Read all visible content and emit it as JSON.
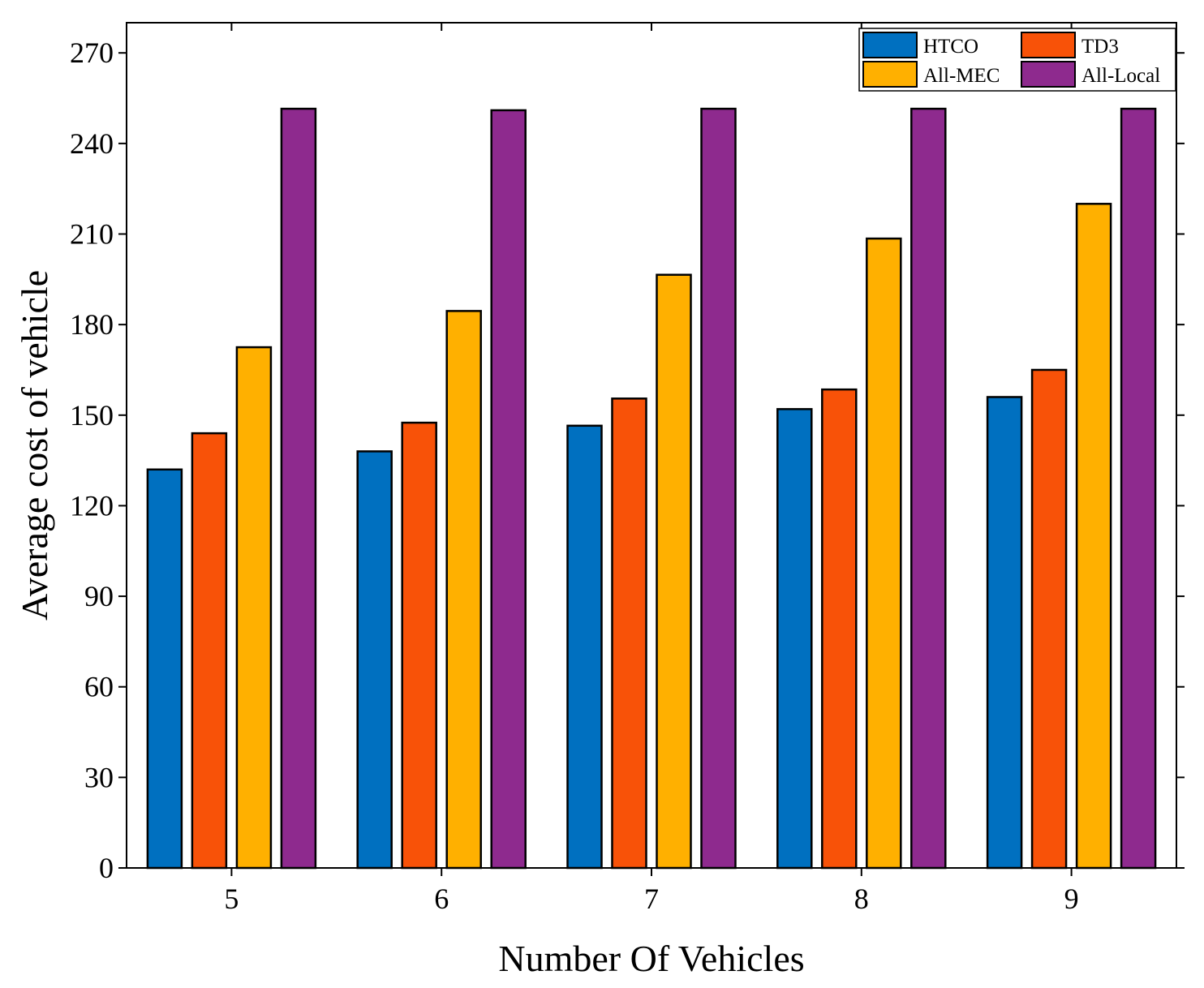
{
  "chart_data": {
    "type": "bar",
    "title": "",
    "xlabel": "Number Of Vehicles",
    "ylabel": "Average cost of vehicle",
    "categories": [
      "5",
      "6",
      "7",
      "8",
      "9"
    ],
    "ylim": [
      0,
      280
    ],
    "yticks": [
      0,
      30,
      60,
      90,
      120,
      150,
      180,
      210,
      240,
      270
    ],
    "grid": false,
    "legend_position": "top-right",
    "series": [
      {
        "name": "HTCO",
        "color": "#0070C0",
        "values": [
          132,
          138,
          146.5,
          152,
          156
        ]
      },
      {
        "name": "TD3",
        "color": "#F85208",
        "values": [
          144,
          147.5,
          155.5,
          158.5,
          165
        ]
      },
      {
        "name": "All-MEC",
        "color": "#FFB000",
        "values": [
          172.5,
          184.5,
          196.5,
          208.5,
          220
        ]
      },
      {
        "name": "All-Local",
        "color": "#8E2A8E",
        "values": [
          251.5,
          251,
          251.5,
          251.5,
          251.5
        ]
      }
    ]
  }
}
